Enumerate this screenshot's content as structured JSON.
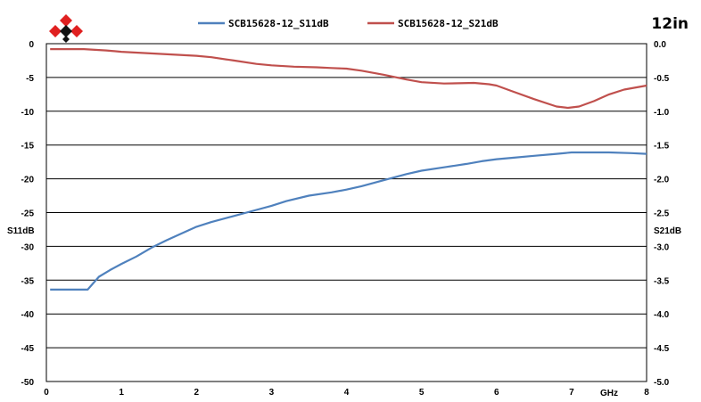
{
  "chart_data": {
    "type": "line",
    "badge": "12in",
    "xlabel": "GHz",
    "ylabel_left": "S11dB",
    "ylabel_right": "S21dB",
    "xlim": [
      0,
      8
    ],
    "ylim_left": [
      -50,
      0
    ],
    "ylim_right": [
      -5.0,
      0.0
    ],
    "x_ticks": [
      "0",
      "1",
      "2",
      "3",
      "4",
      "5",
      "6",
      "7",
      "8"
    ],
    "y_ticks_left": [
      "0",
      "-5",
      "-10",
      "-15",
      "-20",
      "-25",
      "-30",
      "-35",
      "-40",
      "-45",
      "-50"
    ],
    "y_ticks_right": [
      "0.0",
      "-0.5",
      "-1.0",
      "-1.5",
      "-2.0",
      "-2.5",
      "-3.0",
      "-3.5",
      "-4.0",
      "-4.5",
      "-5.0"
    ],
    "grid": true,
    "legend_position": "top",
    "series": [
      {
        "name": "SCB15628-12_S11dB",
        "axis": "left",
        "color": "#4f81bd",
        "x": [
          0.05,
          0.55,
          0.7,
          0.85,
          1.0,
          1.2,
          1.4,
          1.6,
          1.8,
          2.0,
          2.2,
          2.5,
          2.8,
          3.0,
          3.2,
          3.5,
          3.8,
          4.0,
          4.2,
          4.5,
          4.8,
          5.0,
          5.3,
          5.6,
          5.8,
          6.0,
          6.2,
          6.5,
          6.8,
          7.0,
          7.2,
          7.5,
          7.8,
          8.0
        ],
        "y": [
          -36.4,
          -36.4,
          -34.5,
          -33.5,
          -32.6,
          -31.5,
          -30.2,
          -29.1,
          -28.1,
          -27.1,
          -26.4,
          -25.5,
          -24.6,
          -24.0,
          -23.3,
          -22.5,
          -22.0,
          -21.6,
          -21.1,
          -20.2,
          -19.3,
          -18.8,
          -18.3,
          -17.8,
          -17.4,
          -17.1,
          -16.9,
          -16.6,
          -16.3,
          -16.1,
          -16.1,
          -16.1,
          -16.2,
          -16.3
        ]
      },
      {
        "name": "SCB15628-12_S21dB",
        "axis": "right",
        "color": "#c0504d",
        "x": [
          0.05,
          0.5,
          0.8,
          1.0,
          1.5,
          2.0,
          2.2,
          2.5,
          2.8,
          3.0,
          3.3,
          3.6,
          3.8,
          4.0,
          4.2,
          4.5,
          4.8,
          5.0,
          5.3,
          5.7,
          5.9,
          6.0,
          6.2,
          6.5,
          6.8,
          6.95,
          7.1,
          7.3,
          7.5,
          7.7,
          8.0
        ],
        "y": [
          -0.08,
          -0.08,
          -0.1,
          -0.12,
          -0.15,
          -0.18,
          -0.2,
          -0.25,
          -0.3,
          -0.32,
          -0.34,
          -0.35,
          -0.36,
          -0.37,
          -0.4,
          -0.46,
          -0.53,
          -0.57,
          -0.59,
          -0.58,
          -0.6,
          -0.62,
          -0.7,
          -0.82,
          -0.93,
          -0.95,
          -0.93,
          -0.85,
          -0.75,
          -0.68,
          -0.62
        ]
      }
    ]
  }
}
